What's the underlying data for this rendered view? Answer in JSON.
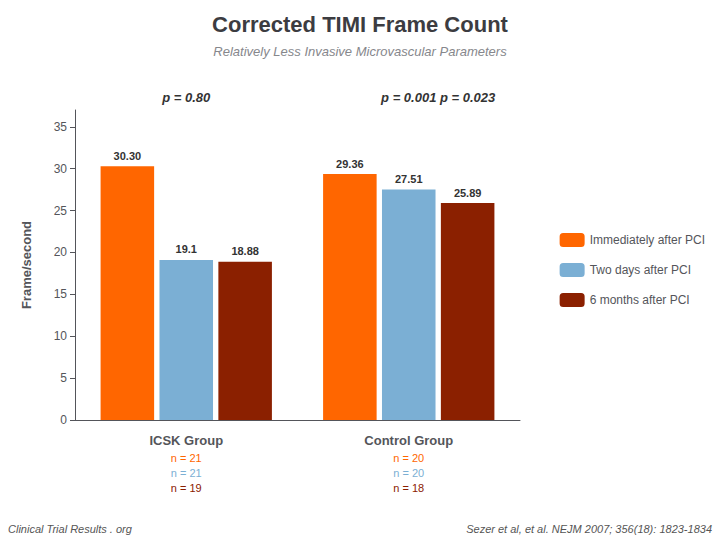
{
  "chart_data": {
    "type": "bar",
    "title": "Corrected TIMI Frame Count",
    "subtitle": "Relatively Less Invasive Microvascular Parameters",
    "ylabel": "Frame/second",
    "categories": [
      "ICSK Group",
      "Control Group"
    ],
    "series": [
      {
        "name": "Immediately after PCI",
        "color": "#FF6600",
        "values": [
          30.3,
          29.36
        ],
        "value_labels": [
          "30.30",
          "29.36"
        ],
        "n_labels": [
          "n = 21",
          "n = 20"
        ]
      },
      {
        "name": "Two days after PCI",
        "color": "#7BAFD4",
        "values": [
          19.1,
          27.51
        ],
        "value_labels": [
          "19.1",
          "27.51"
        ],
        "n_labels": [
          "n = 21",
          "n = 20"
        ]
      },
      {
        "name": "6 months after PCI",
        "color": "#8B2000",
        "values": [
          18.88,
          25.89
        ],
        "value_labels": [
          "18.88",
          "25.89"
        ],
        "n_labels": [
          "n = 19",
          "n = 18"
        ]
      }
    ],
    "annotations": [
      {
        "text": "p = 0.80",
        "category": "ICSK Group",
        "series": "Two days after PCI"
      },
      {
        "text": "p = 0.001",
        "category": "Control Group",
        "series": "Two days after PCI"
      },
      {
        "text": "p = 0.023",
        "category": "Control Group",
        "series": "6 months after PCI"
      }
    ],
    "footer": [
      "Clinical Trial Results . org",
      "Sezer et al, et al. NEJM 2007; 356(18): 1823-1834"
    ],
    "ylim": [
      0,
      37
    ],
    "yticks": [
      0,
      5,
      10,
      15,
      20,
      25,
      30,
      35
    ],
    "data_labels": true,
    "grid": false,
    "legend": "right"
  }
}
